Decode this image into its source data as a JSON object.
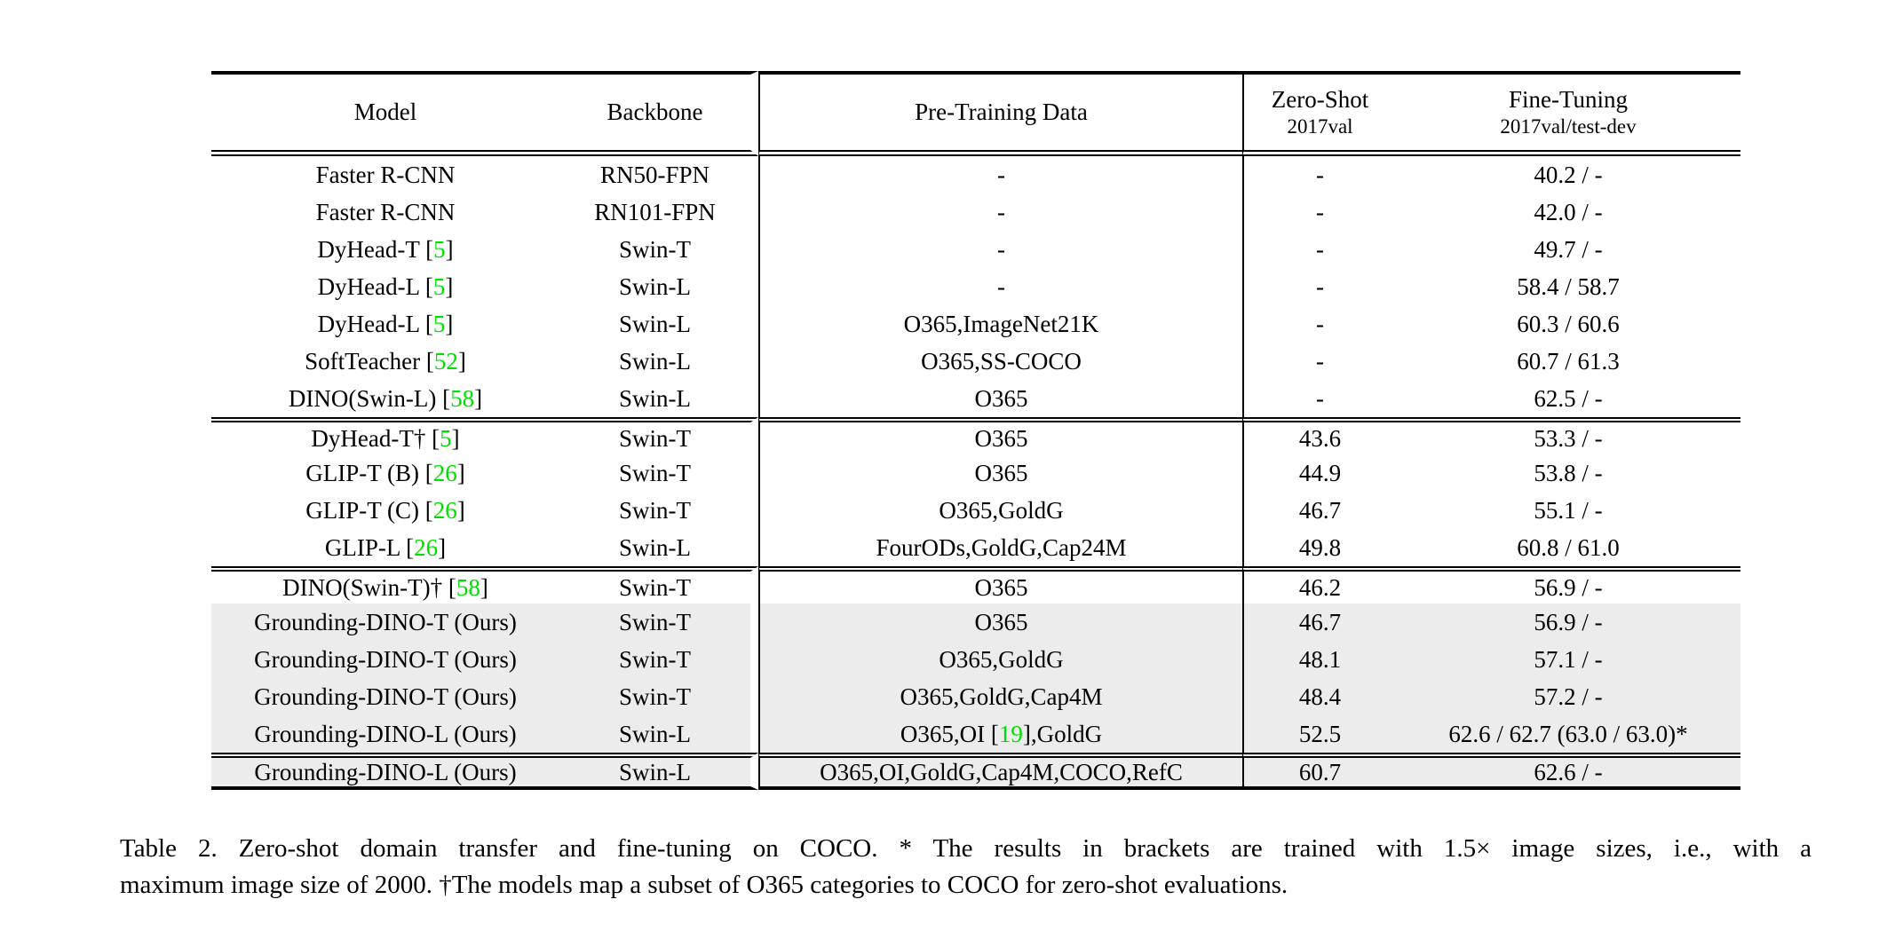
{
  "table": {
    "columns": [
      {
        "key": "model",
        "label": "Model"
      },
      {
        "key": "backbone",
        "label": "Backbone"
      },
      {
        "key": "pretrain",
        "label": "Pre-Training Data"
      },
      {
        "key": "zeroshot",
        "label": "Zero-Shot",
        "sublabel": "2017val"
      },
      {
        "key": "finetune",
        "label": "Fine-Tuning",
        "sublabel": "2017val/test-dev"
      }
    ],
    "sections": [
      {
        "rows": [
          {
            "model": "Faster R-CNN",
            "backbone": "RN50-FPN",
            "pretrain": "-",
            "zeroshot": "-",
            "finetune": "40.2 / -"
          },
          {
            "model": "Faster R-CNN",
            "backbone": "RN101-FPN",
            "pretrain": "-",
            "zeroshot": "-",
            "finetune": "42.0 / -"
          },
          {
            "model": "DyHead-T [5]",
            "backbone": "Swin-T",
            "pretrain": "-",
            "zeroshot": "-",
            "finetune": "49.7 / -"
          },
          {
            "model": "DyHead-L [5]",
            "backbone": "Swin-L",
            "pretrain": "-",
            "zeroshot": "-",
            "finetune": "58.4 / 58.7"
          },
          {
            "model": "DyHead-L [5]",
            "backbone": "Swin-L",
            "pretrain": "O365,ImageNet21K",
            "zeroshot": "-",
            "finetune": "60.3 / 60.6"
          },
          {
            "model": "SoftTeacher [52]",
            "backbone": "Swin-L",
            "pretrain": "O365,SS-COCO",
            "zeroshot": "-",
            "finetune": "60.7 / 61.3"
          },
          {
            "model": "DINO(Swin-L) [58]",
            "backbone": "Swin-L",
            "pretrain": "O365",
            "zeroshot": "-",
            "finetune": "62.5 / -"
          }
        ]
      },
      {
        "rows": [
          {
            "model": "DyHead-T† [5]",
            "backbone": "Swin-T",
            "pretrain": "O365",
            "zeroshot": "43.6",
            "finetune": "53.3 / -"
          },
          {
            "model": "GLIP-T (B) [26]",
            "backbone": "Swin-T",
            "pretrain": "O365",
            "zeroshot": "44.9",
            "finetune": "53.8 / -"
          },
          {
            "model": "GLIP-T (C) [26]",
            "backbone": "Swin-T",
            "pretrain": "O365,GoldG",
            "zeroshot": "46.7",
            "finetune": "55.1 / -"
          },
          {
            "model": "GLIP-L [26]",
            "backbone": "Swin-L",
            "pretrain": "FourODs,GoldG,Cap24M",
            "zeroshot": "49.8",
            "finetune": "60.8 / 61.0"
          }
        ]
      },
      {
        "rows": [
          {
            "model": "DINO(Swin-T)† [58]",
            "backbone": "Swin-T",
            "pretrain": "O365",
            "zeroshot": "46.2",
            "finetune": "56.9 / -"
          },
          {
            "model": "Grounding-DINO-T (Ours)",
            "backbone": "Swin-T",
            "pretrain": "O365",
            "zeroshot": "46.7",
            "finetune": "56.9 / -",
            "highlight": true
          },
          {
            "model": "Grounding-DINO-T (Ours)",
            "backbone": "Swin-T",
            "pretrain": "O365,GoldG",
            "zeroshot": "48.1",
            "finetune": "57.1 / -",
            "highlight": true
          },
          {
            "model": "Grounding-DINO-T (Ours)",
            "backbone": "Swin-T",
            "pretrain": "O365,GoldG,Cap4M",
            "zeroshot": "48.4",
            "finetune": "57.2 / -",
            "highlight": true
          },
          {
            "model": "Grounding-DINO-L (Ours)",
            "backbone": "Swin-L",
            "pretrain": "O365,OI [19],GoldG",
            "zeroshot": "52.5",
            "finetune": "62.6 / 62.7 (63.0 / 63.0)*",
            "highlight": true,
            "bold": true
          }
        ]
      },
      {
        "rows": [
          {
            "model": "Grounding-DINO-L (Ours)",
            "backbone": "Swin-L",
            "pretrain": "O365,OI,GoldG,Cap4M,COCO,RefC",
            "zeroshot": "60.7",
            "finetune": "62.6 / -",
            "highlight": true,
            "bold": true
          }
        ]
      }
    ]
  },
  "caption": {
    "line1": "Table 2.  Zero-shot domain transfer and fine-tuning on COCO. * The results in brackets are trained with 1.5× image sizes, i.e., with a",
    "line2": "maximum image size of 2000. †The models map a subset of O365 categories to COCO for zero-shot evaluations."
  },
  "colors": {
    "citation_green": "#00E000",
    "row_highlight": "#ECECEC",
    "text": "#000000"
  }
}
